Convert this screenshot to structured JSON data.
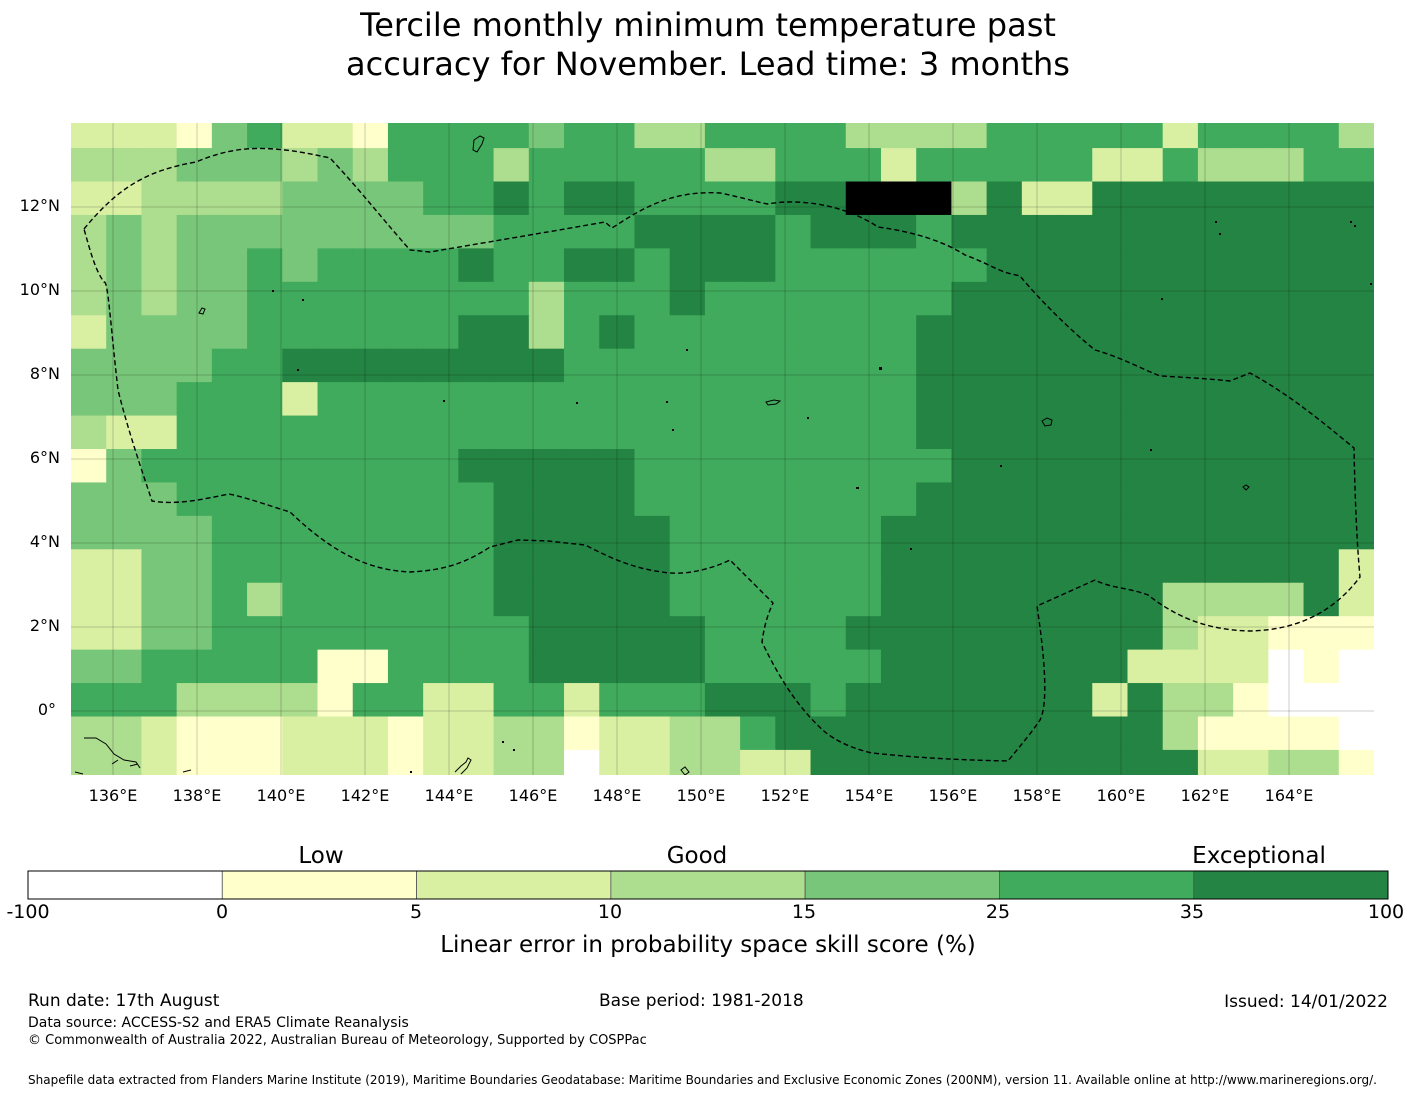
{
  "title_line1": "Tercile monthly minimum temperature past",
  "title_line2": "accuracy for November. Lead time: 3 months",
  "map": {
    "lat_ticks": [
      "12°N",
      "10°N",
      "8°N",
      "6°N",
      "4°N",
      "2°N",
      "0°"
    ],
    "lon_ticks": [
      "136°E",
      "138°E",
      "140°E",
      "142°E",
      "144°E",
      "146°E",
      "148°E",
      "150°E",
      "152°E",
      "154°E",
      "156°E",
      "158°E",
      "160°E",
      "162°E",
      "164°E"
    ],
    "lon_range": [
      135,
      166
    ],
    "lat_range": [
      -1.5,
      14
    ],
    "skill_classes": [
      {
        "range": "-100 to 0",
        "color": "#ffffff"
      },
      {
        "range": "0 to 5",
        "color": "#ffffcc"
      },
      {
        "range": "5 to 10",
        "color": "#d9f0a3"
      },
      {
        "range": "10 to 15",
        "color": "#addd8e"
      },
      {
        "range": "15 to 25",
        "color": "#78c679"
      },
      {
        "range": "25 to 35",
        "color": "#41ab5d"
      },
      {
        "range": "35 to 100",
        "color": "#238443"
      }
    ]
  },
  "colorbar": {
    "category_labels": [
      "Low",
      "Good",
      "Exceptional"
    ],
    "ticks": [
      "-100",
      "0",
      "5",
      "10",
      "15",
      "25",
      "35",
      "100"
    ],
    "colors": [
      "#ffffff",
      "#ffffcc",
      "#d9f0a3",
      "#addd8e",
      "#78c679",
      "#41ab5d",
      "#238443"
    ],
    "title": "Linear error in probability space skill score (%)"
  },
  "footer": {
    "run_date": "Run date: 17th August",
    "base_period": "Base period: 1981-2018",
    "issued": "Issued: 14/01/2022",
    "data_source": "Data source: ACCESS-S2 and ERA5 Climate Reanalysis",
    "copyright": "© Commonwealth of Australia 2022, Australian Bureau of Meteorology, Supported by COSPPac",
    "shapefile": "Shapefile data extracted from Flanders Marine Institute (2019), Maritime Boundaries Geodatabase: Maritime Boundaries and Exclusive Economic Zones (200NM), version 11. Available online at http://www.marineregions.org/."
  }
}
